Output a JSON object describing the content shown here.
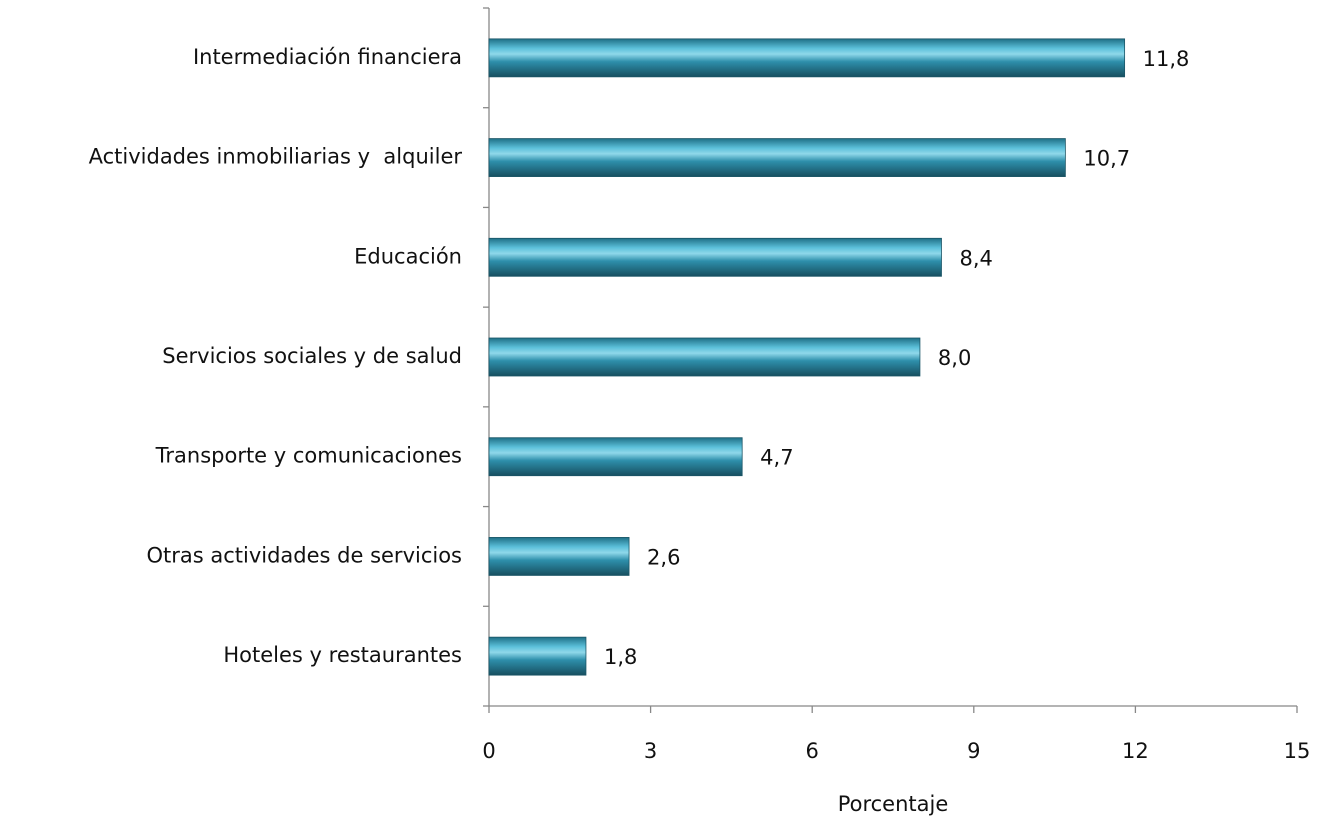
{
  "chart_data": {
    "type": "bar",
    "orientation": "horizontal",
    "categories": [
      "Intermediación financiera",
      "Actividades inmobiliarias y  alquiler",
      "Educación",
      "Servicios sociales y de salud",
      "Transporte y comunicaciones",
      "Otras actividades de servicios",
      "Hoteles y restaurantes"
    ],
    "values": [
      11.8,
      10.7,
      8.4,
      8.0,
      4.7,
      2.6,
      1.8
    ],
    "value_labels": [
      "11,8",
      "10,7",
      "8,4",
      "8,0",
      "4,7",
      "2,6",
      "1,8"
    ],
    "color": "#2e8fab",
    "xlim": [
      0,
      15
    ],
    "xticks": [
      0,
      3,
      6,
      9,
      12,
      15
    ],
    "xlabel": "Porcentaje",
    "grid": false
  }
}
